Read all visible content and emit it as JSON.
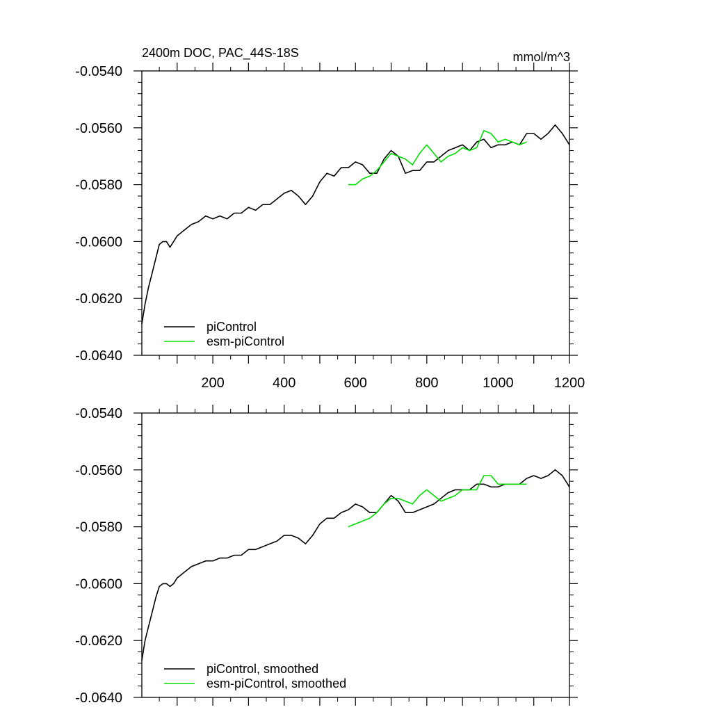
{
  "title_left": "2400m DOC, PAC_44S-18S",
  "title_right": "mmol/m^3",
  "colors": {
    "piControl": "#000000",
    "esm-piControl": "#00e000"
  },
  "chart_data": [
    {
      "type": "line",
      "panel": "top",
      "xlim": [
        1,
        1200
      ],
      "ylim": [
        -0.064,
        -0.054
      ],
      "xticks": [
        200,
        400,
        600,
        800,
        1000,
        1200
      ],
      "xtick_labels": [
        "200",
        "400",
        "600",
        "800",
        "1000",
        "1200"
      ],
      "yticks": [
        -0.054,
        -0.056,
        -0.058,
        -0.06,
        -0.062,
        -0.064
      ],
      "ytick_labels": [
        "-0.0540",
        "-0.0560",
        "-0.0580",
        "-0.0600",
        "-0.0620",
        "-0.0640"
      ],
      "legend_position": "bottom-left",
      "series": [
        {
          "name": "piControl",
          "color": "#000000",
          "x": [
            1,
            10,
            20,
            30,
            40,
            50,
            60,
            70,
            80,
            90,
            100,
            120,
            140,
            160,
            180,
            200,
            220,
            240,
            260,
            280,
            300,
            320,
            340,
            360,
            380,
            400,
            420,
            440,
            460,
            480,
            500,
            520,
            540,
            560,
            580,
            600,
            620,
            640,
            660,
            680,
            700,
            720,
            740,
            760,
            780,
            800,
            820,
            840,
            860,
            880,
            900,
            920,
            940,
            960,
            980,
            1000,
            1020,
            1040,
            1060,
            1080,
            1100,
            1120,
            1140,
            1160,
            1180,
            1200
          ],
          "y": [
            -0.0629,
            -0.0622,
            -0.0616,
            -0.0611,
            -0.0606,
            -0.0601,
            -0.06,
            -0.06,
            -0.0602,
            -0.06,
            -0.0598,
            -0.0596,
            -0.0594,
            -0.0593,
            -0.0591,
            -0.0592,
            -0.0591,
            -0.0592,
            -0.059,
            -0.059,
            -0.0588,
            -0.0589,
            -0.0587,
            -0.0587,
            -0.0585,
            -0.0583,
            -0.0582,
            -0.0584,
            -0.0587,
            -0.0584,
            -0.0579,
            -0.0576,
            -0.0577,
            -0.0574,
            -0.0574,
            -0.0572,
            -0.0573,
            -0.0576,
            -0.0576,
            -0.0571,
            -0.0568,
            -0.057,
            -0.0576,
            -0.0575,
            -0.0575,
            -0.0572,
            -0.0572,
            -0.057,
            -0.0568,
            -0.0567,
            -0.0566,
            -0.0568,
            -0.0565,
            -0.0564,
            -0.0567,
            -0.0566,
            -0.0566,
            -0.0565,
            -0.0566,
            -0.0562,
            -0.0562,
            -0.0564,
            -0.0562,
            -0.0559,
            -0.0562,
            -0.0566
          ]
        },
        {
          "name": "esm-piControl",
          "color": "#00e000",
          "x": [
            580,
            600,
            620,
            640,
            660,
            680,
            700,
            720,
            740,
            760,
            780,
            800,
            820,
            840,
            860,
            880,
            900,
            920,
            940,
            960,
            980,
            1000,
            1020,
            1040,
            1060,
            1080
          ],
          "y": [
            -0.058,
            -0.058,
            -0.0578,
            -0.0577,
            -0.0575,
            -0.0572,
            -0.0569,
            -0.057,
            -0.0571,
            -0.0573,
            -0.0569,
            -0.0566,
            -0.0569,
            -0.0572,
            -0.057,
            -0.0569,
            -0.0567,
            -0.0568,
            -0.0567,
            -0.0561,
            -0.0562,
            -0.0565,
            -0.0564,
            -0.0565,
            -0.0566,
            -0.0565
          ]
        }
      ]
    },
    {
      "type": "line",
      "panel": "bottom",
      "xlim": [
        1,
        1200
      ],
      "ylim": [
        -0.064,
        -0.054
      ],
      "yticks": [
        -0.054,
        -0.056,
        -0.058,
        -0.06,
        -0.062,
        -0.064
      ],
      "ytick_labels": [
        "-0.0540",
        "-0.0560",
        "-0.0580",
        "-0.0600",
        "-0.0620",
        "-0.0640"
      ],
      "legend_position": "bottom-left",
      "series": [
        {
          "name": "piControl, smoothed",
          "color": "#000000",
          "x": [
            1,
            10,
            20,
            30,
            40,
            50,
            60,
            70,
            80,
            90,
            100,
            120,
            140,
            160,
            180,
            200,
            220,
            240,
            260,
            280,
            300,
            320,
            340,
            360,
            380,
            400,
            420,
            440,
            460,
            480,
            500,
            520,
            540,
            560,
            580,
            600,
            620,
            640,
            660,
            680,
            700,
            720,
            740,
            760,
            780,
            800,
            820,
            840,
            860,
            880,
            900,
            920,
            940,
            960,
            980,
            1000,
            1020,
            1040,
            1060,
            1080,
            1100,
            1120,
            1140,
            1160,
            1180,
            1200
          ],
          "y": [
            -0.0627,
            -0.062,
            -0.0615,
            -0.061,
            -0.0605,
            -0.0601,
            -0.06,
            -0.06,
            -0.0601,
            -0.06,
            -0.0598,
            -0.0596,
            -0.0594,
            -0.0593,
            -0.0592,
            -0.0592,
            -0.0591,
            -0.0591,
            -0.059,
            -0.059,
            -0.0588,
            -0.0588,
            -0.0587,
            -0.0586,
            -0.0585,
            -0.0583,
            -0.0583,
            -0.0584,
            -0.0586,
            -0.0583,
            -0.0579,
            -0.0577,
            -0.0577,
            -0.0575,
            -0.0574,
            -0.0572,
            -0.0573,
            -0.0575,
            -0.0575,
            -0.0572,
            -0.0569,
            -0.0571,
            -0.0575,
            -0.0575,
            -0.0574,
            -0.0573,
            -0.0572,
            -0.057,
            -0.0568,
            -0.0567,
            -0.0567,
            -0.0567,
            -0.0565,
            -0.0565,
            -0.0566,
            -0.0566,
            -0.0565,
            -0.0565,
            -0.0565,
            -0.0563,
            -0.0562,
            -0.0563,
            -0.0562,
            -0.056,
            -0.0562,
            -0.0566
          ]
        },
        {
          "name": "esm-piControl, smoothed",
          "color": "#00e000",
          "x": [
            580,
            600,
            620,
            640,
            660,
            680,
            700,
            720,
            740,
            760,
            780,
            800,
            820,
            840,
            860,
            880,
            900,
            920,
            940,
            960,
            980,
            1000,
            1020,
            1040,
            1060,
            1080
          ],
          "y": [
            -0.058,
            -0.0579,
            -0.0578,
            -0.0577,
            -0.0575,
            -0.0572,
            -0.057,
            -0.057,
            -0.0571,
            -0.0572,
            -0.0569,
            -0.0567,
            -0.0569,
            -0.0571,
            -0.057,
            -0.0569,
            -0.0567,
            -0.0567,
            -0.0567,
            -0.0562,
            -0.0562,
            -0.0565,
            -0.0565,
            -0.0565,
            -0.0565,
            -0.0565
          ]
        }
      ]
    }
  ]
}
